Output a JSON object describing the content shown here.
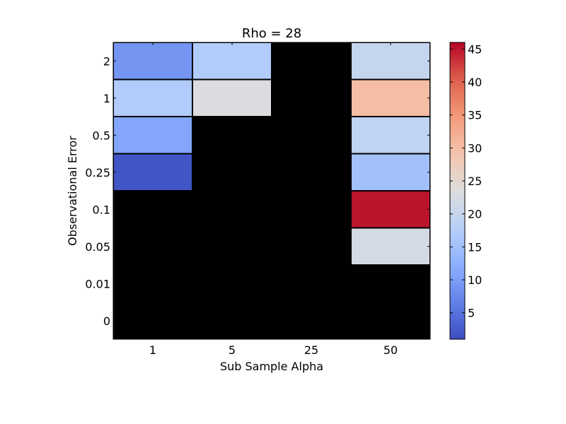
{
  "chart_data": {
    "type": "heatmap",
    "title": "Rho = 28",
    "xlabel": "Sub Sample Alpha",
    "ylabel": "Observational Error",
    "x_categories": [
      "1",
      "5",
      "25",
      "50"
    ],
    "y_categories": [
      "2",
      "1",
      "0.5",
      "0.25",
      "0.1",
      "0.05",
      "0.01",
      "0"
    ],
    "values": [
      [
        9,
        17,
        null,
        20
      ],
      [
        17,
        23,
        null,
        30
      ],
      [
        11,
        null,
        null,
        19
      ],
      [
        2,
        null,
        null,
        15
      ],
      [
        null,
        null,
        null,
        45
      ],
      [
        null,
        null,
        null,
        22
      ],
      [
        null,
        null,
        null,
        null
      ],
      [
        null,
        null,
        null,
        null
      ]
    ],
    "missing_color": "#000000",
    "colormap": "coolwarm",
    "vmin": 1,
    "vmax": 46,
    "colorbar_ticks": [
      5,
      10,
      15,
      20,
      25,
      30,
      35,
      40,
      45
    ],
    "grid": false
  }
}
